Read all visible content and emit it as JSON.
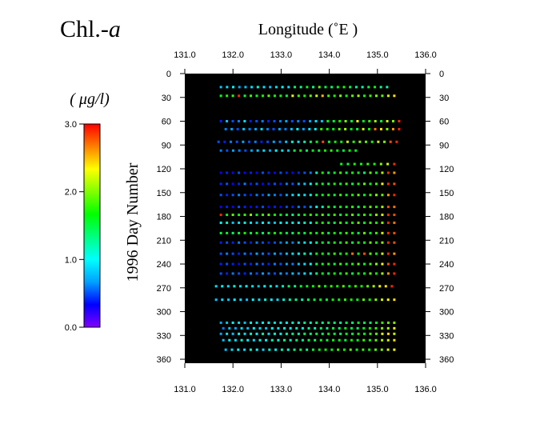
{
  "chart_data": {
    "type": "scatter",
    "title_main": "Chl.-",
    "title_italic": "a",
    "xlabel": "Longitude  (˚E )",
    "ylabel": "1996  Day  Number",
    "unit_label": "( μg/l)",
    "xlim": [
      131.0,
      136.0
    ],
    "ylim": [
      0,
      365
    ],
    "y_inverted": true,
    "x_ticks": [
      "131.0",
      "132.0",
      "133.0",
      "134.0",
      "135.0",
      "136.0"
    ],
    "y_ticks": [
      "0",
      "30",
      "60",
      "90",
      "120",
      "150",
      "180",
      "210",
      "240",
      "270",
      "300",
      "330",
      "360"
    ],
    "plot_background": "#000000",
    "colorbar": {
      "range": [
        0.0,
        3.0
      ],
      "ticks": [
        "0.0",
        "1.0",
        "2.0",
        "3.0"
      ],
      "colors": [
        "#8000ff",
        "#0000ff",
        "#00a0ff",
        "#00ffff",
        "#00ff80",
        "#00ff00",
        "#80ff00",
        "#ffff00",
        "#ff8000",
        "#ff0000"
      ]
    },
    "cruises": [
      {
        "day": 17,
        "lon_start": 131.75,
        "lon_end": 135.2,
        "step": 0.125,
        "values": [
          0.8,
          0.9,
          1.0,
          0.7,
          0.8,
          0.9,
          1.1,
          0.9,
          0.8,
          0.9,
          1.0,
          0.9,
          1.4,
          1.3,
          1.6,
          1.3,
          1.9,
          1.5,
          1.4,
          1.6,
          1.7,
          1.5,
          1.3,
          1.2,
          1.5,
          1.6,
          1.3,
          1.2
        ]
      },
      {
        "day": 28,
        "lon_start": 131.75,
        "lon_end": 135.35,
        "step": 0.125,
        "values": [
          1.6,
          1.7,
          1.8,
          2.9,
          1.5,
          1.8,
          1.6,
          1.7,
          1.9,
          1.7,
          1.6,
          1.5,
          2.3,
          1.8,
          1.7,
          1.9,
          2.2,
          2.5,
          1.8,
          1.7,
          2.0,
          1.6,
          1.9,
          2.1,
          1.7,
          1.8,
          2.0,
          1.9,
          2.2,
          2.4
        ]
      },
      {
        "day": 60,
        "lon_start": 131.75,
        "lon_end": 135.45,
        "step": 0.125,
        "values": [
          0.4,
          0.8,
          0.5,
          0.6,
          0.9,
          0.4,
          0.5,
          0.6,
          0.4,
          0.5,
          0.6,
          0.7,
          0.5,
          0.6,
          0.5,
          0.7,
          0.9,
          0.8,
          1.6,
          1.5,
          1.7,
          2.0,
          1.5,
          2.3,
          1.6,
          1.8,
          2.1,
          1.5,
          2.2,
          2.0,
          2.9
        ]
      },
      {
        "day": 70,
        "lon_start": 131.85,
        "lon_end": 135.45,
        "step": 0.125,
        "values": [
          0.6,
          0.7,
          0.5,
          0.8,
          0.6,
          0.7,
          0.9,
          0.6,
          0.5,
          0.7,
          0.6,
          0.8,
          1.0,
          0.7,
          0.9,
          1.0,
          1.8,
          1.7,
          1.6,
          1.9,
          2.1,
          1.6,
          1.5,
          2.2,
          1.7,
          2.7,
          2.4,
          2.0,
          2.6,
          2.9
        ]
      },
      {
        "day": 86,
        "lon_start": 131.7,
        "lon_end": 135.4,
        "step": 0.125,
        "values": [
          0.5,
          0.4,
          0.6,
          0.5,
          0.7,
          0.5,
          0.6,
          0.4,
          0.5,
          0.7,
          0.6,
          0.8,
          1.1,
          0.9,
          1.2,
          1.4,
          1.6,
          2.8,
          1.5,
          1.7,
          1.6,
          2.2,
          1.8,
          2.0,
          1.9,
          1.7,
          2.2,
          2.0,
          2.8,
          2.9
        ]
      },
      {
        "day": 97,
        "lon_start": 131.75,
        "lon_end": 134.55,
        "step": 0.125,
        "values": [
          0.6,
          0.5,
          0.7,
          0.6,
          0.5,
          0.7,
          0.8,
          0.9,
          0.7,
          1.0,
          0.9,
          0.8,
          1.5,
          1.7,
          1.4,
          1.6,
          1.5,
          1.7,
          1.8,
          1.6,
          1.5,
          1.7,
          1.6
        ]
      },
      {
        "day": 114,
        "lon_start": 134.25,
        "lon_end": 135.35,
        "step": 0.125,
        "values": [
          1.6,
          1.5,
          1.7,
          1.6,
          1.8,
          1.7,
          2.0,
          2.2,
          2.9
        ]
      },
      {
        "day": 125,
        "lon_start": 131.75,
        "lon_end": 135.35,
        "step": 0.125,
        "values": [
          0.3,
          0.4,
          0.3,
          0.5,
          0.3,
          0.4,
          0.3,
          0.5,
          0.4,
          0.3,
          0.5,
          0.4,
          0.3,
          0.4,
          0.5,
          0.6,
          1.2,
          1.7,
          1.5,
          1.6,
          1.8,
          1.5,
          1.7,
          1.6,
          1.4,
          1.9,
          1.6,
          2.1,
          2.9,
          2.6
        ]
      },
      {
        "day": 139,
        "lon_start": 131.75,
        "lon_end": 135.35,
        "step": 0.125,
        "values": [
          0.4,
          0.5,
          0.3,
          0.4,
          0.6,
          0.4,
          0.5,
          0.3,
          0.4,
          0.5,
          0.4,
          0.6,
          0.5,
          0.7,
          0.8,
          1.0,
          1.4,
          1.6,
          1.5,
          1.7,
          1.6,
          1.8,
          1.5,
          1.7,
          1.9,
          1.6,
          1.8,
          2.3,
          2.9,
          2.8
        ]
      },
      {
        "day": 153,
        "lon_start": 131.75,
        "lon_end": 135.35,
        "step": 0.125,
        "values": [
          0.5,
          0.4,
          0.5,
          0.6,
          0.5,
          0.4,
          0.6,
          0.5,
          0.7,
          0.6,
          0.5,
          0.7,
          0.9,
          1.0,
          0.9,
          1.1,
          1.5,
          1.6,
          1.7,
          1.5,
          1.8,
          1.6,
          1.7,
          1.9,
          1.6,
          1.8,
          2.0,
          1.9,
          2.6,
          2.9
        ]
      },
      {
        "day": 168,
        "lon_start": 131.75,
        "lon_end": 135.35,
        "step": 0.125,
        "values": [
          0.3,
          0.4,
          0.3,
          0.5,
          0.4,
          0.3,
          0.4,
          0.5,
          0.3,
          0.4,
          0.3,
          0.5,
          0.4,
          0.6,
          0.5,
          0.7,
          1.0,
          1.2,
          1.6,
          1.5,
          1.7,
          1.6,
          1.8,
          1.5,
          1.7,
          1.9,
          1.7,
          2.1,
          2.8,
          2.7
        ]
      },
      {
        "day": 178,
        "lon_start": 131.75,
        "lon_end": 135.35,
        "step": 0.125,
        "values": [
          2.9,
          1.6,
          1.9,
          1.7,
          1.8,
          2.0,
          1.6,
          1.8,
          1.9,
          1.7,
          1.6,
          1.5,
          1.3,
          1.5,
          1.6,
          1.8,
          1.7,
          1.9,
          1.6,
          1.8,
          1.5,
          1.7,
          1.9,
          1.6,
          1.8,
          1.7,
          2.0,
          2.2,
          2.9,
          2.8
        ]
      },
      {
        "day": 188,
        "lon_start": 131.75,
        "lon_end": 135.35,
        "step": 0.125,
        "values": [
          1.0,
          1.2,
          0.8,
          0.9,
          1.1,
          0.9,
          0.8,
          1.0,
          0.9,
          0.8,
          1.0,
          0.9,
          1.1,
          1.0,
          1.2,
          1.1,
          1.6,
          1.7,
          1.6,
          1.5,
          1.8,
          1.6,
          1.7,
          1.9,
          1.6,
          1.8,
          1.7,
          2.0,
          2.9,
          2.7
        ]
      },
      {
        "day": 201,
        "lon_start": 131.75,
        "lon_end": 135.35,
        "step": 0.125,
        "values": [
          1.5,
          1.6,
          1.4,
          1.5,
          1.7,
          1.5,
          1.6,
          1.4,
          1.5,
          1.7,
          1.6,
          1.5,
          1.4,
          1.6,
          1.5,
          1.7,
          1.6,
          1.8,
          1.5,
          1.7,
          1.6,
          1.8,
          1.7,
          1.5,
          1.9,
          1.6,
          1.8,
          2.2,
          2.9,
          2.8
        ]
      },
      {
        "day": 213,
        "lon_start": 131.75,
        "lon_end": 135.35,
        "step": 0.125,
        "values": [
          0.4,
          0.5,
          0.4,
          0.6,
          0.5,
          0.4,
          0.6,
          0.5,
          0.4,
          0.5,
          0.6,
          0.7,
          0.6,
          0.8,
          0.9,
          1.0,
          1.3,
          1.6,
          1.5,
          1.7,
          1.6,
          1.8,
          1.5,
          1.7,
          1.6,
          1.9,
          1.7,
          2.0,
          2.9,
          2.8
        ]
      },
      {
        "day": 227,
        "lon_start": 131.75,
        "lon_end": 135.35,
        "step": 0.125,
        "values": [
          0.5,
          0.6,
          0.5,
          0.4,
          0.6,
          0.5,
          0.7,
          0.6,
          0.5,
          0.7,
          0.6,
          0.8,
          0.9,
          1.0,
          1.2,
          1.1,
          1.6,
          1.7,
          1.5,
          1.8,
          1.6,
          1.7,
          2.7,
          1.6,
          2.8,
          1.9,
          1.7,
          2.2,
          2.9,
          2.6
        ]
      },
      {
        "day": 240,
        "lon_start": 131.75,
        "lon_end": 135.35,
        "step": 0.125,
        "values": [
          0.4,
          0.5,
          0.4,
          0.3,
          0.5,
          0.4,
          0.6,
          0.5,
          0.4,
          0.6,
          0.5,
          0.7,
          0.6,
          0.8,
          0.9,
          1.0,
          1.5,
          1.6,
          1.7,
          1.5,
          1.8,
          1.6,
          1.7,
          1.9,
          1.6,
          1.8,
          2.0,
          2.3,
          2.8,
          2.9
        ]
      },
      {
        "day": 252,
        "lon_start": 131.75,
        "lon_end": 135.35,
        "step": 0.125,
        "values": [
          0.5,
          0.4,
          0.6,
          0.5,
          0.4,
          0.6,
          0.5,
          0.7,
          0.6,
          0.5,
          0.7,
          0.6,
          0.8,
          0.7,
          0.9,
          1.0,
          1.3,
          1.6,
          1.5,
          1.7,
          1.6,
          1.8,
          1.5,
          1.7,
          1.6,
          1.9,
          1.7,
          2.1,
          2.6,
          2.9
        ]
      },
      {
        "day": 268,
        "lon_start": 131.65,
        "lon_end": 135.3,
        "step": 0.125,
        "values": [
          0.9,
          1.0,
          0.9,
          1.1,
          0.9,
          1.0,
          0.9,
          0.8,
          1.0,
          1.1,
          0.9,
          1.2,
          1.4,
          1.3,
          1.5,
          1.6,
          1.7,
          1.9,
          1.6,
          1.8,
          1.7,
          1.9,
          1.6,
          1.8,
          1.7,
          1.9,
          2.1,
          2.3,
          2.4,
          2.9
        ]
      },
      {
        "day": 285,
        "lon_start": 131.65,
        "lon_end": 135.35,
        "step": 0.125,
        "values": [
          0.8,
          0.9,
          0.8,
          1.0,
          0.9,
          0.8,
          1.0,
          0.9,
          1.1,
          1.0,
          0.9,
          1.1,
          1.2,
          1.3,
          1.2,
          1.4,
          1.5,
          1.6,
          1.5,
          1.7,
          1.6,
          1.8,
          1.7,
          1.6,
          1.9,
          1.7,
          2.0,
          2.2,
          2.3,
          2.4
        ]
      },
      {
        "day": 314,
        "lon_start": 131.75,
        "lon_end": 135.35,
        "step": 0.125,
        "values": [
          0.7,
          0.8,
          1.0,
          0.9,
          0.8,
          1.0,
          0.9,
          1.1,
          1.0,
          0.9,
          1.1,
          1.0,
          1.2,
          1.1,
          1.3,
          1.2,
          1.4,
          1.3,
          1.5,
          1.4,
          1.3,
          1.5,
          1.4,
          1.6,
          1.5,
          1.4,
          1.6,
          1.8,
          1.9,
          2.0
        ]
      },
      {
        "day": 321,
        "lon_start": 131.8,
        "lon_end": 135.35,
        "step": 0.125,
        "values": [
          0.6,
          0.8,
          0.7,
          0.9,
          0.8,
          1.0,
          0.9,
          0.8,
          1.0,
          0.9,
          1.1,
          1.0,
          1.2,
          1.1,
          1.3,
          1.2,
          1.4,
          1.3,
          1.5,
          1.4,
          1.6,
          1.5,
          1.4,
          1.6,
          1.7,
          1.8,
          2.0,
          2.1,
          2.3
        ]
      },
      {
        "day": 328,
        "lon_start": 131.75,
        "lon_end": 135.35,
        "step": 0.125,
        "values": [
          0.7,
          0.9,
          0.8,
          1.0,
          0.9,
          1.1,
          1.0,
          1.2,
          0.9,
          1.1,
          1.0,
          1.2,
          1.3,
          1.2,
          1.4,
          1.3,
          1.5,
          1.4,
          1.6,
          1.5,
          1.4,
          1.6,
          1.5,
          1.7,
          1.6,
          1.8,
          1.9,
          2.3,
          2.4,
          2.2
        ]
      },
      {
        "day": 336,
        "lon_start": 131.8,
        "lon_end": 135.35,
        "step": 0.125,
        "values": [
          0.8,
          1.0,
          0.9,
          1.1,
          1.0,
          0.9,
          1.1,
          1.0,
          1.2,
          1.1,
          1.3,
          1.2,
          1.4,
          1.3,
          1.5,
          1.4,
          1.6,
          1.5,
          1.7,
          1.6,
          1.5,
          1.7,
          1.6,
          1.8,
          1.7,
          1.9,
          2.1,
          2.2,
          2.4
        ]
      },
      {
        "day": 348,
        "lon_start": 131.85,
        "lon_end": 135.35,
        "step": 0.125,
        "values": [
          0.8,
          0.9,
          1.0,
          0.9,
          1.1,
          1.0,
          0.9,
          1.1,
          1.0,
          1.2,
          1.1,
          1.3,
          1.4,
          1.3,
          1.5,
          1.6,
          1.7,
          1.6,
          1.8,
          1.7,
          1.9,
          1.6,
          1.8,
          1.7,
          1.9,
          2.0,
          2.2,
          2.3
        ]
      }
    ]
  }
}
